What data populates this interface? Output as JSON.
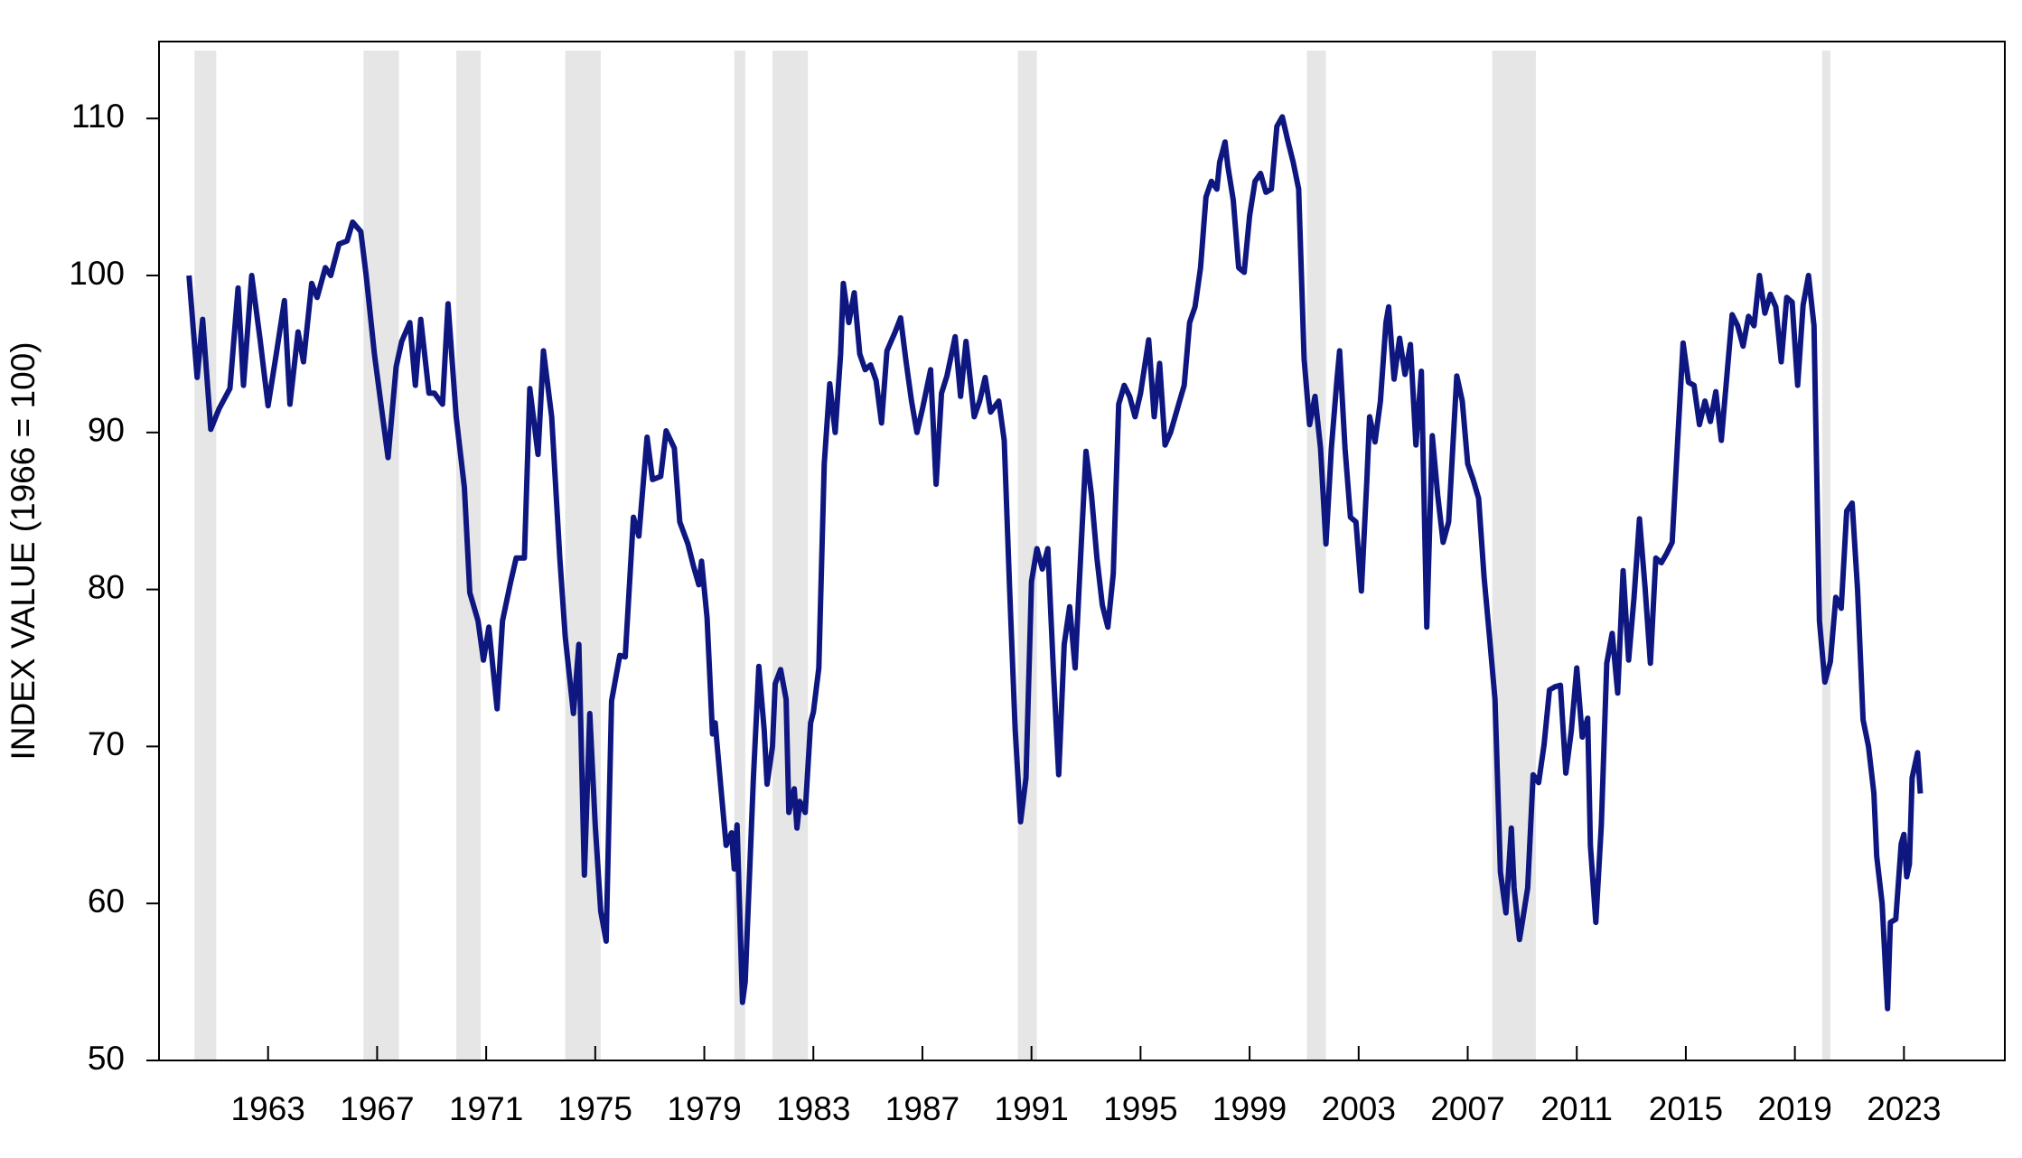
{
  "chart_data": {
    "type": "line",
    "y_label": "INDEX VALUE (1966 = 100)",
    "xlim": [
      1959,
      2026.7
    ],
    "ylim": [
      50,
      114.9
    ],
    "xticks": [
      1963,
      1967,
      1971,
      1975,
      1979,
      1983,
      1987,
      1991,
      1995,
      1999,
      2003,
      2007,
      2011,
      2015,
      2019,
      2023
    ],
    "yticks": [
      50,
      60,
      70,
      80,
      90,
      100,
      110
    ],
    "color": "#0e1680",
    "recession_color": "#e6e6e6",
    "recessions": [
      [
        1960.3,
        1961.1
      ],
      [
        1966.5,
        1967.8
      ],
      [
        1969.9,
        1970.8
      ],
      [
        1973.9,
        1975.2
      ],
      [
        1980.1,
        1980.5
      ],
      [
        1981.5,
        1982.8
      ],
      [
        1990.5,
        1991.2
      ],
      [
        2001.1,
        2001.8
      ],
      [
        2007.9,
        2009.5
      ],
      [
        2020.0,
        2020.3
      ]
    ],
    "x": [
      1960.1,
      1960.4,
      1960.6,
      1960.9,
      1961.2,
      1961.6,
      1961.9,
      1962.1,
      1962.4,
      1962.7,
      1963.0,
      1963.3,
      1963.6,
      1963.8,
      1964.1,
      1964.3,
      1964.6,
      1964.8,
      1965.1,
      1965.3,
      1965.6,
      1965.9,
      1966.1,
      1966.4,
      1966.6,
      1966.9,
      1967.2,
      1967.4,
      1967.7,
      1967.9,
      1968.2,
      1968.4,
      1968.6,
      1968.9,
      1969.1,
      1969.4,
      1969.6,
      1969.9,
      1970.2,
      1970.4,
      1970.7,
      1970.9,
      1971.1,
      1971.4,
      1971.6,
      1971.9,
      1972.1,
      1972.4,
      1972.6,
      1972.9,
      1973.1,
      1973.4,
      1973.7,
      1973.9,
      1974.2,
      1974.4,
      1974.6,
      1974.8,
      1975.0,
      1975.2,
      1975.4,
      1975.6,
      1975.9,
      1976.1,
      1976.4,
      1976.6,
      1976.9,
      1977.1,
      1977.4,
      1977.6,
      1977.9,
      1978.1,
      1978.4,
      1978.6,
      1978.8,
      1978.9,
      1979.1,
      1979.3,
      1979.4,
      1979.6,
      1979.8,
      1980.0,
      1980.1,
      1980.2,
      1980.4,
      1980.5,
      1980.8,
      1981.0,
      1981.2,
      1981.3,
      1981.5,
      1981.6,
      1981.8,
      1982.0,
      1982.1,
      1982.3,
      1982.4,
      1982.5,
      1982.7,
      1982.9,
      1983.0,
      1983.2,
      1983.4,
      1983.6,
      1983.8,
      1984.0,
      1984.1,
      1984.3,
      1984.5,
      1984.7,
      1984.9,
      1985.1,
      1985.3,
      1985.5,
      1985.7,
      1986.0,
      1986.2,
      1986.4,
      1986.6,
      1986.8,
      1987.0,
      1987.3,
      1987.5,
      1987.7,
      1987.9,
      1988.2,
      1988.4,
      1988.6,
      1988.9,
      1989.1,
      1989.3,
      1989.5,
      1989.8,
      1990.0,
      1990.2,
      1990.4,
      1990.6,
      1990.8,
      1991.0,
      1991.2,
      1991.4,
      1991.6,
      1991.8,
      1992.0,
      1992.2,
      1992.4,
      1992.6,
      1992.8,
      1993.0,
      1993.2,
      1993.4,
      1993.6,
      1993.8,
      1994.0,
      1994.2,
      1994.4,
      1994.6,
      1994.8,
      1995.0,
      1995.3,
      1995.5,
      1995.7,
      1995.9,
      1996.1,
      1996.4,
      1996.6,
      1996.8,
      1997.0,
      1997.2,
      1997.4,
      1997.6,
      1997.8,
      1997.9,
      1998.1,
      1998.2,
      1998.4,
      1998.6,
      1998.8,
      1999.0,
      1999.2,
      1999.4,
      1999.6,
      1999.8,
      2000.0,
      2000.2,
      2000.4,
      2000.6,
      2000.8,
      2001.0,
      2001.2,
      2001.4,
      2001.6,
      2001.8,
      2002.0,
      2002.2,
      2002.3,
      2002.5,
      2002.7,
      2002.9,
      2003.1,
      2003.3,
      2003.4,
      2003.6,
      2003.8,
      2004.0,
      2004.1,
      2004.3,
      2004.5,
      2004.7,
      2004.9,
      2005.1,
      2005.3,
      2005.5,
      2005.7,
      2005.9,
      2006.1,
      2006.3,
      2006.6,
      2006.8,
      2007.0,
      2007.2,
      2007.4,
      2007.6,
      2007.8,
      2008.0,
      2008.2,
      2008.4,
      2008.6,
      2008.7,
      2008.9,
      2009.0,
      2009.2,
      2009.4,
      2009.6,
      2009.8,
      2010.0,
      2010.2,
      2010.4,
      2010.6,
      2010.8,
      2011.0,
      2011.2,
      2011.4,
      2011.5,
      2011.7,
      2011.9,
      2012.1,
      2012.3,
      2012.5,
      2012.7,
      2012.9,
      2013.1,
      2013.3,
      2013.5,
      2013.7,
      2013.9,
      2014.1,
      2014.3,
      2014.5,
      2014.7,
      2014.9,
      2015.1,
      2015.3,
      2015.5,
      2015.7,
      2015.9,
      2016.1,
      2016.3,
      2016.5,
      2016.7,
      2016.9,
      2017.1,
      2017.3,
      2017.5,
      2017.7,
      2017.9,
      2018.1,
      2018.3,
      2018.5,
      2018.7,
      2018.9,
      2019.1,
      2019.3,
      2019.5,
      2019.7,
      2019.9,
      2020.1,
      2020.3,
      2020.5,
      2020.7,
      2020.9,
      2021.1,
      2021.3,
      2021.5,
      2021.7,
      2021.9,
      2022.0,
      2022.2,
      2022.4,
      2022.5,
      2022.7,
      2022.9,
      2023.0,
      2023.1,
      2023.2,
      2023.3,
      2023.5,
      2023.6
    ],
    "values": [
      100,
      93.5,
      97.2,
      90.2,
      91.5,
      92.8,
      99.2,
      93,
      100,
      96,
      91.7,
      95,
      98.4,
      91.8,
      96.4,
      94.5,
      99.5,
      98.6,
      100.5,
      100,
      102,
      102.2,
      103.4,
      102.8,
      100,
      95,
      91,
      88.4,
      94.2,
      95.8,
      97,
      93,
      97.2,
      92.5,
      92.5,
      91.8,
      98.2,
      91,
      86.5,
      79.8,
      78,
      75.5,
      77.6,
      72.4,
      78,
      80.5,
      82,
      82,
      92.8,
      88.6,
      95.2,
      91,
      82,
      77,
      72.1,
      76.5,
      61.8,
      72.1,
      65,
      59.5,
      57.6,
      72.9,
      75.8,
      75.7,
      84.6,
      83.4,
      89.7,
      87,
      87.2,
      90.1,
      89,
      84.3,
      82.9,
      81.5,
      80.3,
      81.8,
      78.2,
      70.8,
      71.5,
      67.5,
      63.7,
      64.5,
      62.2,
      65,
      53.7,
      55,
      68,
      75.1,
      71,
      67.6,
      70,
      74,
      74.9,
      73,
      65.8,
      67.3,
      64.8,
      66.5,
      65.8,
      71.5,
      72.2,
      75,
      88,
      93.1,
      90,
      95,
      99.5,
      97,
      98.9,
      95,
      94,
      94.3,
      93.3,
      90.6,
      95.2,
      96.4,
      97.3,
      94.5,
      92,
      90,
      91.5,
      94,
      86.7,
      92.5,
      93.6,
      96.1,
      92.3,
      95.8,
      91,
      92,
      93.5,
      91.3,
      92,
      89.5,
      80,
      71.1,
      65.2,
      68,
      80.5,
      82.6,
      81.3,
      82.6,
      75,
      68.2,
      76.5,
      78.9,
      75,
      82,
      88.8,
      86,
      82,
      79,
      77.6,
      81,
      91.8,
      93,
      92.3,
      91,
      92.5,
      95.9,
      91,
      94.4,
      89.2,
      90,
      91.8,
      93,
      97,
      98,
      100.5,
      105,
      106,
      105.5,
      107.2,
      108.5,
      107,
      104.8,
      100.5,
      100.2,
      103.8,
      106,
      106.5,
      105.3,
      105.5,
      109.5,
      110.1,
      108.6,
      107.2,
      105.5,
      94.7,
      90.5,
      92.3,
      89,
      82.9,
      89,
      93.3,
      95.2,
      89,
      84.6,
      84.3,
      79.9,
      87,
      91,
      89.4,
      92,
      97,
      98,
      93.4,
      96,
      93.7,
      95.6,
      89.2,
      93.9,
      77.6,
      89.8,
      86,
      83,
      84.3,
      93.6,
      92,
      88,
      87,
      85.8,
      80.8,
      77,
      73,
      62,
      59.4,
      64.8,
      61,
      57.7,
      58.8,
      61,
      68.2,
      67.7,
      70.1,
      73.6,
      73.8,
      73.9,
      68.3,
      71,
      75,
      70.6,
      71.8,
      63.7,
      58.8,
      65,
      75.3,
      77.2,
      73.4,
      81.2,
      75.5,
      79.5,
      84.5,
      80.2,
      75.3,
      82,
      81.7,
      82.3,
      83,
      89.5,
      95.7,
      93.2,
      93,
      90.5,
      92,
      90.7,
      92.6,
      89.5,
      93.5,
      97.5,
      96.8,
      95.5,
      97.4,
      96.8,
      100,
      97.6,
      98.8,
      98,
      94.5,
      98.6,
      98.3,
      93,
      98.1,
      100,
      96.8,
      78,
      74.1,
      75.4,
      79.5,
      78.8,
      85,
      85.5,
      80,
      71.7,
      70,
      67,
      63,
      60,
      53.3,
      58.8,
      59,
      63.8,
      64.4,
      61.7,
      62.5,
      68,
      69.6,
      67
    ]
  }
}
